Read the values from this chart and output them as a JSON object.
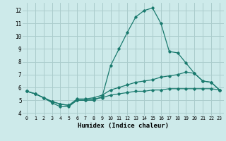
{
  "xlabel": "Humidex (Indice chaleur)",
  "bg_color": "#cdeaea",
  "grid_color": "#aacccc",
  "line_color": "#1a7a6e",
  "xlim": [
    -0.5,
    23.5
  ],
  "ylim": [
    3.8,
    12.6
  ],
  "x_ticks": [
    0,
    1,
    2,
    3,
    4,
    5,
    6,
    7,
    8,
    9,
    10,
    11,
    12,
    13,
    14,
    15,
    16,
    17,
    18,
    19,
    20,
    21,
    22,
    23
  ],
  "y_ticks": [
    4,
    5,
    6,
    7,
    8,
    9,
    10,
    11,
    12
  ],
  "series_main_x": [
    0,
    1,
    2,
    3,
    4,
    5,
    6,
    7,
    8,
    9,
    10,
    11,
    12,
    13,
    14,
    15,
    16,
    17,
    18,
    19,
    20,
    21,
    22,
    23
  ],
  "series_main_y": [
    5.7,
    5.5,
    5.2,
    4.8,
    4.5,
    4.5,
    5.0,
    5.0,
    5.0,
    5.3,
    7.7,
    9.0,
    10.3,
    11.5,
    12.0,
    12.2,
    11.0,
    8.8,
    8.7,
    7.9,
    7.1,
    6.5,
    6.4,
    5.8
  ],
  "series_upper_x": [
    0,
    1,
    2,
    3,
    4,
    5,
    6,
    7,
    8,
    9,
    10,
    11,
    12,
    13,
    14,
    15,
    16,
    17,
    18,
    19,
    20,
    21,
    22,
    23
  ],
  "series_upper_y": [
    5.7,
    5.5,
    5.2,
    4.9,
    4.7,
    4.6,
    5.1,
    5.1,
    5.2,
    5.4,
    5.8,
    6.0,
    6.2,
    6.4,
    6.5,
    6.6,
    6.8,
    6.9,
    7.0,
    7.2,
    7.1,
    6.5,
    6.4,
    5.8
  ],
  "series_lower_x": [
    0,
    1,
    2,
    3,
    4,
    5,
    6,
    7,
    8,
    9,
    10,
    11,
    12,
    13,
    14,
    15,
    16,
    17,
    18,
    19,
    20,
    21,
    22,
    23
  ],
  "series_lower_y": [
    5.7,
    5.5,
    5.2,
    4.9,
    4.7,
    4.6,
    5.0,
    5.0,
    5.1,
    5.2,
    5.4,
    5.5,
    5.6,
    5.7,
    5.7,
    5.8,
    5.8,
    5.9,
    5.9,
    5.9,
    5.9,
    5.9,
    5.9,
    5.8
  ]
}
